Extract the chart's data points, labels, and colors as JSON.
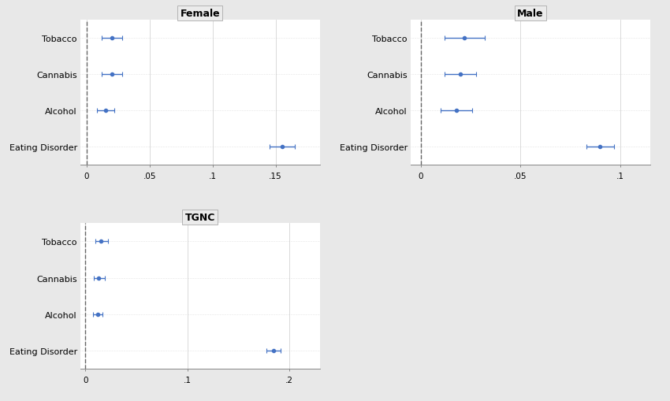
{
  "panels": [
    {
      "title": "Female",
      "categories": [
        "Tobacco",
        "Cannabis",
        "Alcohol",
        "Eating Disorder"
      ],
      "estimates": [
        0.02,
        0.02,
        0.015,
        0.155
      ],
      "ci_low": [
        0.012,
        0.012,
        0.008,
        0.145
      ],
      "ci_high": [
        0.028,
        0.028,
        0.022,
        0.165
      ],
      "xlim": [
        -0.005,
        0.185
      ],
      "xticks": [
        0,
        0.05,
        0.1,
        0.15
      ],
      "xticklabels": [
        "0",
        ".05",
        ".1",
        ".15"
      ]
    },
    {
      "title": "Male",
      "categories": [
        "Tobacco",
        "Cannabis",
        "Alcohol",
        "Eating Disorder"
      ],
      "estimates": [
        0.022,
        0.02,
        0.018,
        0.09
      ],
      "ci_low": [
        0.012,
        0.012,
        0.01,
        0.083
      ],
      "ci_high": [
        0.032,
        0.028,
        0.026,
        0.097
      ],
      "xlim": [
        -0.005,
        0.115
      ],
      "xticks": [
        0,
        0.05,
        0.1
      ],
      "xticklabels": [
        "0",
        ".05",
        ".1"
      ]
    },
    {
      "title": "TGNC",
      "categories": [
        "Tobacco",
        "Cannabis",
        "Alcohol",
        "Eating Disorder"
      ],
      "estimates": [
        0.015,
        0.013,
        0.012,
        0.185
      ],
      "ci_low": [
        0.01,
        0.008,
        0.007,
        0.178
      ],
      "ci_high": [
        0.022,
        0.019,
        0.017,
        0.192
      ],
      "xlim": [
        -0.005,
        0.23
      ],
      "xticks": [
        0,
        0.1,
        0.2
      ],
      "xticklabels": [
        "0",
        ".1",
        ".2"
      ]
    }
  ],
  "point_color": "#4472C4",
  "line_color": "#4472C4",
  "bg_color": "#E8E8E8",
  "panel_bg": "#FFFFFF",
  "grid_color": "#CCCCCC",
  "dashed_color": "#666666",
  "title_fontsize": 9,
  "tick_fontsize": 7.5,
  "label_fontsize": 8
}
